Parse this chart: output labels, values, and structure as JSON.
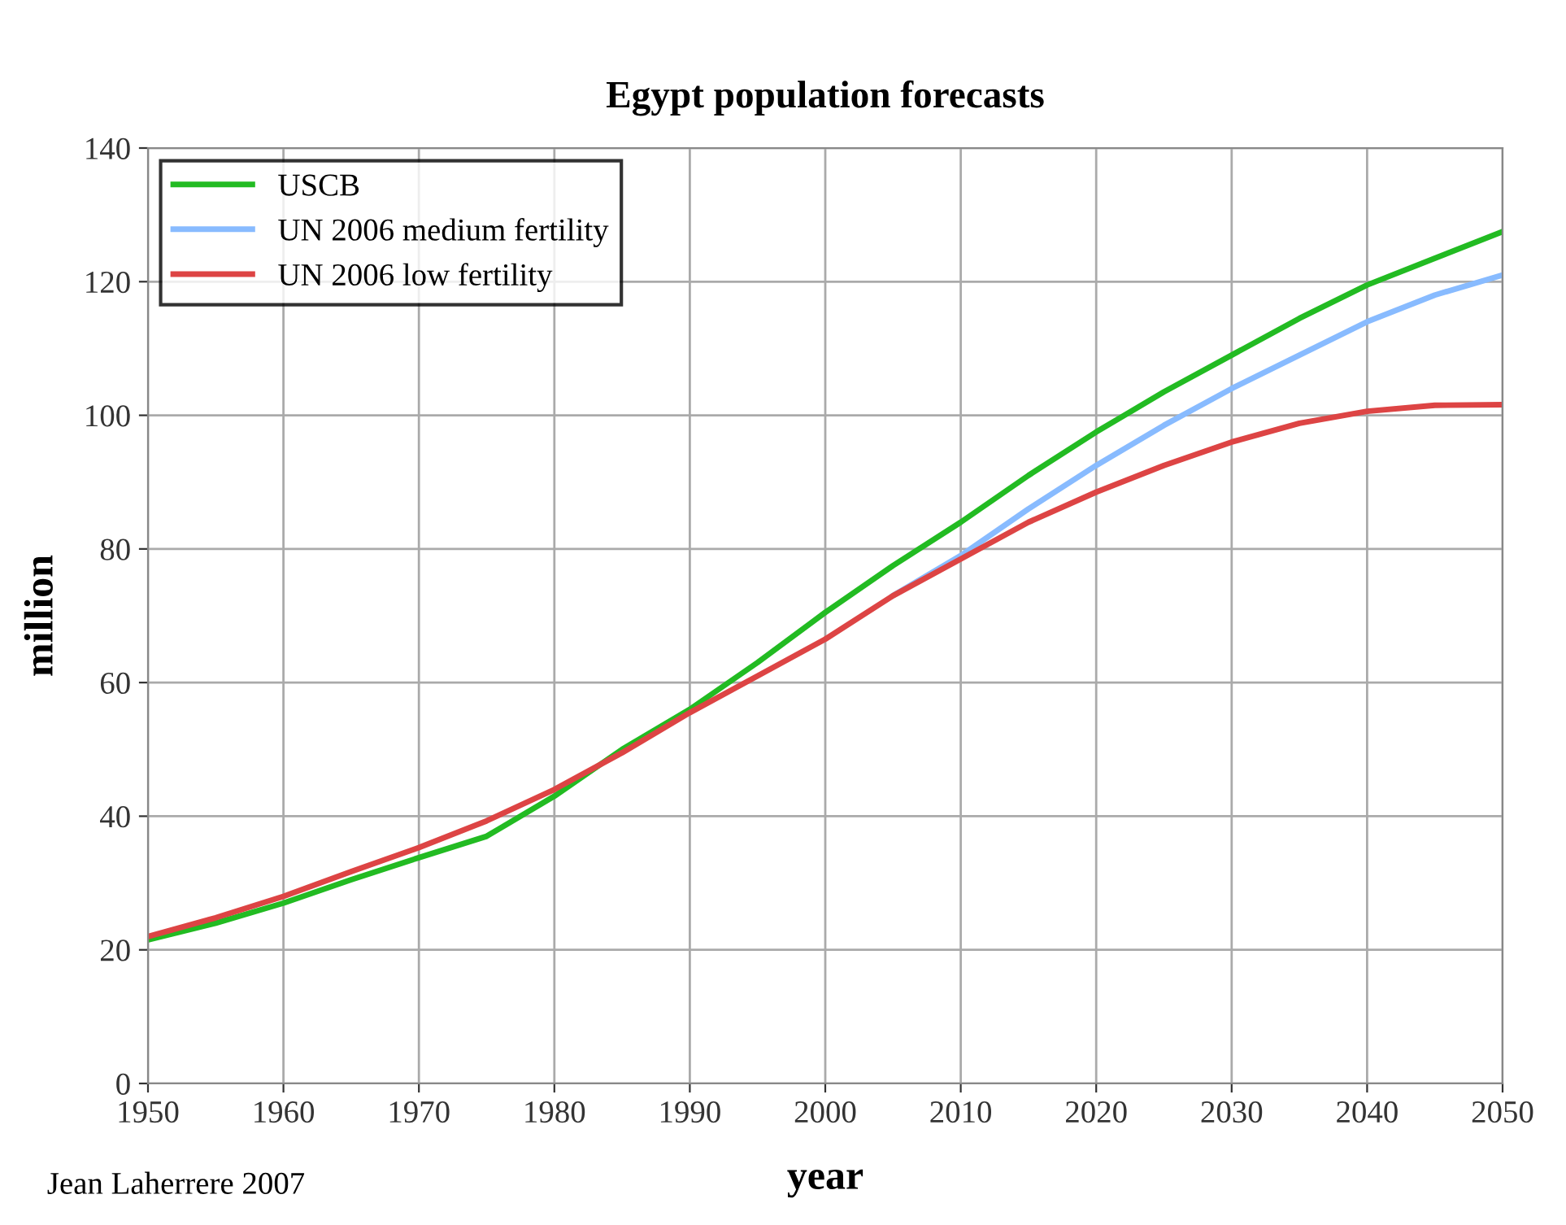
{
  "chart_data": {
    "type": "line",
    "title": "Egypt population forecasts",
    "xlabel": "year",
    "ylabel": "million",
    "annotations": [
      "Jean Laherrere 2007"
    ],
    "x": [
      1950,
      1955,
      1960,
      1965,
      1970,
      1975,
      1980,
      1985,
      1990,
      1995,
      2000,
      2005,
      2010,
      2015,
      2020,
      2025,
      2030,
      2035,
      2040,
      2045,
      2050
    ],
    "series": [
      {
        "name": "USCB",
        "color": "#22bb22",
        "values": [
          21.5,
          24,
          27,
          30.5,
          33.8,
          37,
          43,
          50,
          56,
          63,
          70.5,
          77.5,
          84,
          91,
          97.5,
          103.5,
          109,
          114.5,
          119.5,
          123.5,
          127.5
        ]
      },
      {
        "name": "UN 2006 medium fertility",
        "color": "#88bbff",
        "values": [
          null,
          null,
          null,
          null,
          null,
          null,
          null,
          null,
          null,
          null,
          null,
          73,
          79,
          86,
          92.5,
          98.5,
          104,
          109,
          114,
          118,
          121
        ]
      },
      {
        "name": "UN 2006 low fertility",
        "color": "#dd4444",
        "values": [
          22,
          24.8,
          28,
          31.7,
          35.3,
          39.3,
          44,
          49.5,
          55.5,
          61,
          66.5,
          73,
          78.5,
          84,
          88.5,
          92.5,
          96,
          98.8,
          100.6,
          101.5,
          101.6
        ]
      }
    ],
    "xlim": [
      1950,
      2050
    ],
    "xticks": [
      1950,
      1960,
      1970,
      1980,
      1990,
      2000,
      2010,
      2020,
      2030,
      2040,
      2050
    ],
    "ylim": [
      0,
      140
    ],
    "yticks": [
      0,
      20,
      40,
      60,
      80,
      100,
      120,
      140
    ],
    "grid": true,
    "legend": "top left",
    "marker": "none",
    "line_style": "solid"
  }
}
